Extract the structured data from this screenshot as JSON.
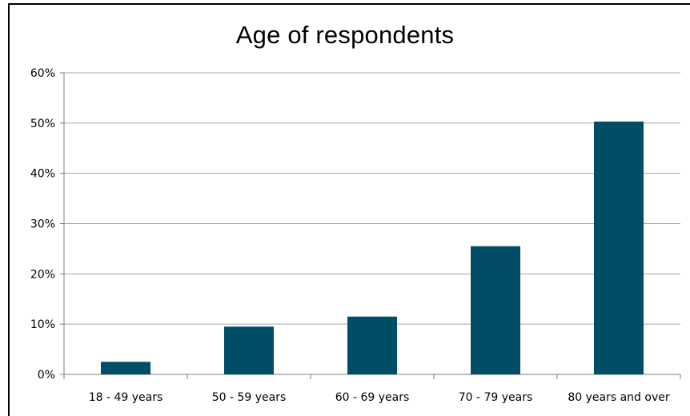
{
  "chart_data": {
    "type": "bar",
    "title": "Age of respondents",
    "xlabel": "",
    "ylabel": "",
    "categories": [
      "18 - 49 years",
      "50 - 59 years",
      "60 - 69 years",
      "70 - 79 years",
      "80 years and over"
    ],
    "values": [
      2.5,
      9.5,
      11.5,
      25.5,
      50.3
    ],
    "ylim": [
      0,
      60
    ],
    "yticks": [
      0,
      10,
      20,
      30,
      40,
      50,
      60
    ],
    "ytick_labels": [
      "0%",
      "10%",
      "20%",
      "30%",
      "40%",
      "50%",
      "60%"
    ],
    "grid": true,
    "legend": "none",
    "bar_color": "#004d66",
    "grid_color": "#a6a6a6"
  }
}
